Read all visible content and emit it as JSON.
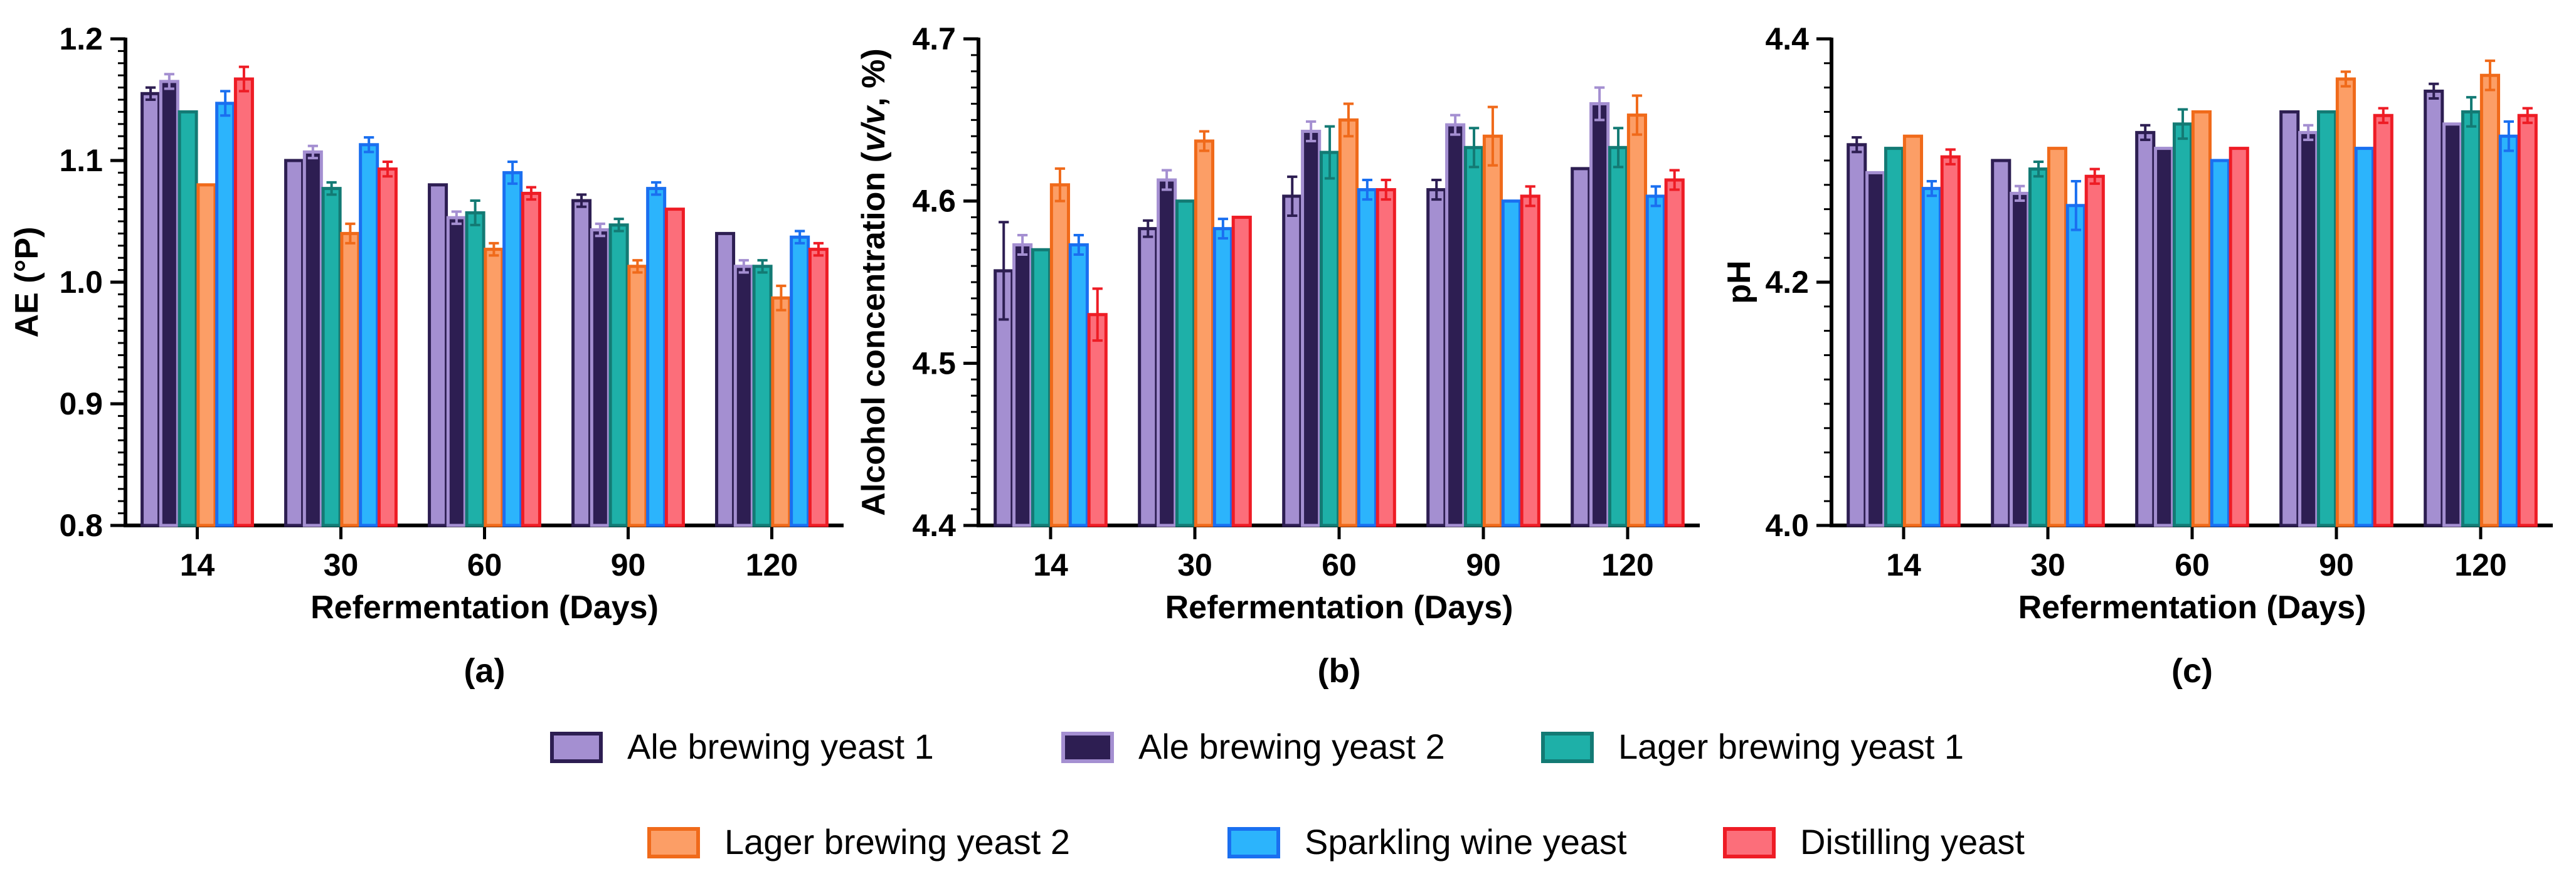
{
  "series_styles": [
    {
      "fill": "#a48fd1",
      "stroke": "#2d1e52"
    },
    {
      "fill": "#2d1e52",
      "stroke": "#a48fd1"
    },
    {
      "fill": "#1eb0a8",
      "stroke": "#137a74"
    },
    {
      "fill": "#fc9e66",
      "stroke": "#f06a1a"
    },
    {
      "fill": "#2cb4fc",
      "stroke": "#1a6ff0"
    },
    {
      "fill": "#fc6e7a",
      "stroke": "#ee1c25"
    }
  ],
  "legend": {
    "items": [
      "Ale brewing yeast 1",
      "Ale brewing yeast 2",
      "Lager brewing yeast 1",
      "Lager brewing yeast 2",
      "Sparkling wine yeast",
      "Distilling yeast"
    ]
  },
  "chart_data": [
    {
      "type": "bar",
      "panel_label": "(a)",
      "xlabel": "Refermentation (Days)",
      "ylabel": "AE (°P)",
      "categories": [
        "14",
        "30",
        "60",
        "90",
        "120"
      ],
      "ylim": [
        0.8,
        1.2
      ],
      "yticks": [
        "0.8",
        "0.9",
        "1.0",
        "1.1",
        "1.2"
      ],
      "series": [
        {
          "name": "Ale brewing yeast 1",
          "values": [
            1.155,
            1.1,
            1.08,
            1.067,
            1.04
          ],
          "errors": [
            0.005,
            0.0,
            0.0,
            0.005,
            0.0
          ]
        },
        {
          "name": "Ale brewing yeast 2",
          "values": [
            1.165,
            1.107,
            1.053,
            1.043,
            1.013
          ],
          "errors": [
            0.006,
            0.005,
            0.005,
            0.005,
            0.005
          ]
        },
        {
          "name": "Lager brewing yeast 1",
          "values": [
            1.14,
            1.077,
            1.057,
            1.047,
            1.013
          ],
          "errors": [
            0.0,
            0.005,
            0.01,
            0.005,
            0.005
          ]
        },
        {
          "name": "Lager brewing yeast 2",
          "values": [
            1.08,
            1.04,
            1.027,
            1.013,
            0.987
          ],
          "errors": [
            0.0,
            0.008,
            0.005,
            0.005,
            0.01
          ]
        },
        {
          "name": "Sparkling wine yeast",
          "values": [
            1.147,
            1.113,
            1.09,
            1.077,
            1.037
          ],
          "errors": [
            0.01,
            0.006,
            0.009,
            0.005,
            0.005
          ]
        },
        {
          "name": "Distilling yeast",
          "values": [
            1.167,
            1.093,
            1.073,
            1.06,
            1.027
          ],
          "errors": [
            0.01,
            0.006,
            0.005,
            0.0,
            0.005
          ]
        }
      ]
    },
    {
      "type": "bar",
      "panel_label": "(b)",
      "xlabel": "Refermentation (Days)",
      "ylabel_parts": [
        "Alcohol concentration (",
        "v/v",
        ", %)"
      ],
      "categories": [
        "14",
        "30",
        "60",
        "90",
        "120"
      ],
      "ylim": [
        4.4,
        4.7
      ],
      "yticks": [
        "4.4",
        "4.5",
        "4.6",
        "4.7"
      ],
      "series": [
        {
          "name": "Ale brewing yeast 1",
          "values": [
            4.557,
            4.583,
            4.603,
            4.607,
            4.62
          ],
          "errors": [
            0.03,
            0.005,
            0.012,
            0.006,
            0.0
          ]
        },
        {
          "name": "Ale brewing yeast 2",
          "values": [
            4.573,
            4.613,
            4.643,
            4.647,
            4.66
          ],
          "errors": [
            0.006,
            0.006,
            0.006,
            0.006,
            0.01
          ]
        },
        {
          "name": "Lager brewing yeast 1",
          "values": [
            4.57,
            4.6,
            4.63,
            4.633,
            4.633
          ],
          "errors": [
            0.0,
            0.0,
            0.016,
            0.012,
            0.012
          ]
        },
        {
          "name": "Lager brewing yeast 2",
          "values": [
            4.61,
            4.637,
            4.65,
            4.64,
            4.653
          ],
          "errors": [
            0.01,
            0.006,
            0.01,
            0.018,
            0.012
          ]
        },
        {
          "name": "Sparkling wine yeast",
          "values": [
            4.573,
            4.583,
            4.607,
            4.6,
            4.603
          ],
          "errors": [
            0.006,
            0.006,
            0.006,
            0.0,
            0.006
          ]
        },
        {
          "name": "Distilling yeast",
          "values": [
            4.53,
            4.59,
            4.607,
            4.603,
            4.613
          ],
          "errors": [
            0.016,
            0.0,
            0.006,
            0.006,
            0.006
          ]
        }
      ]
    },
    {
      "type": "bar",
      "panel_label": "(c)",
      "xlabel": "Refermentation (Days)",
      "ylabel": "pH",
      "categories": [
        "14",
        "30",
        "60",
        "90",
        "120"
      ],
      "ylim": [
        4.0,
        4.4
      ],
      "yticks": [
        "4.0",
        "4.2",
        "4.4"
      ],
      "series": [
        {
          "name": "Ale brewing yeast 1",
          "values": [
            4.313,
            4.3,
            4.323,
            4.34,
            4.357
          ],
          "errors": [
            0.006,
            0.0,
            0.006,
            0.0,
            0.006
          ]
        },
        {
          "name": "Ale brewing yeast 2",
          "values": [
            4.29,
            4.273,
            4.31,
            4.323,
            4.33
          ],
          "errors": [
            0.0,
            0.006,
            0.0,
            0.006,
            0.0
          ]
        },
        {
          "name": "Lager brewing yeast 1",
          "values": [
            4.31,
            4.293,
            4.33,
            4.34,
            4.34
          ],
          "errors": [
            0.0,
            0.006,
            0.012,
            0.0,
            0.012
          ]
        },
        {
          "name": "Lager brewing yeast 2",
          "values": [
            4.32,
            4.31,
            4.34,
            4.367,
            4.37
          ],
          "errors": [
            0.0,
            0.0,
            0.0,
            0.006,
            0.012
          ]
        },
        {
          "name": "Sparkling wine yeast",
          "values": [
            4.277,
            4.263,
            4.3,
            4.31,
            4.32
          ],
          "errors": [
            0.006,
            0.02,
            0.0,
            0.0,
            0.012
          ]
        },
        {
          "name": "Distilling yeast",
          "values": [
            4.303,
            4.287,
            4.31,
            4.337,
            4.337
          ],
          "errors": [
            0.006,
            0.006,
            0.0,
            0.006,
            0.006
          ]
        }
      ]
    }
  ]
}
